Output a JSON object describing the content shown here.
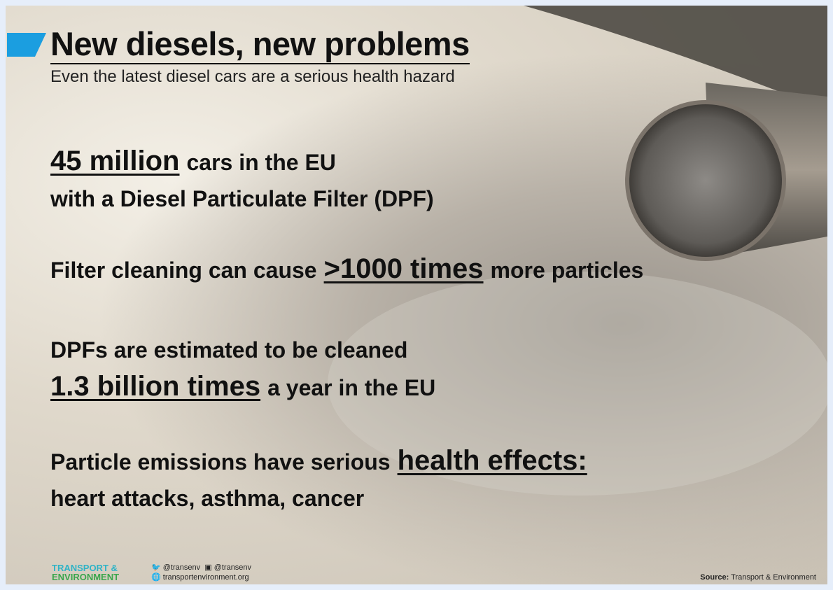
{
  "header": {
    "title": "New diesels, new problems",
    "subtitle": "Even the latest diesel cars are a serious health hazard"
  },
  "facts": [
    {
      "lines": [
        [
          {
            "text": "45 million",
            "highlight": true
          },
          {
            "text": "cars in the EU",
            "highlight": false
          }
        ],
        [
          {
            "text": "with a Diesel Particulate Filter (DPF)",
            "highlight": false
          }
        ]
      ]
    },
    {
      "lines": [
        [
          {
            "text": "Filter cleaning can cause",
            "highlight": false
          },
          {
            "text": ">1000 times",
            "highlight": true
          },
          {
            "text": "more particles",
            "highlight": false
          }
        ]
      ]
    },
    {
      "lines": [
        [
          {
            "text": "DPFs are estimated to be cleaned",
            "highlight": false
          }
        ],
        [
          {
            "text": "1.3 billion times",
            "highlight": true
          },
          {
            "text": "a year in the EU",
            "highlight": false
          }
        ]
      ]
    },
    {
      "lines": [
        [
          {
            "text": "Particle emissions have serious",
            "highlight": false
          },
          {
            "text": "health effects:",
            "highlight": true
          }
        ],
        [
          {
            "text": "heart attacks, asthma, cancer",
            "highlight": false
          }
        ]
      ]
    }
  ],
  "footer": {
    "logo": [
      "TRANSPORT &",
      "ENVIRONMENT"
    ],
    "twitter": "@transenv",
    "facebook": "@transenv",
    "website": "transportenvironment.org",
    "source_label": "Source:",
    "source": "Transport & Environment"
  }
}
